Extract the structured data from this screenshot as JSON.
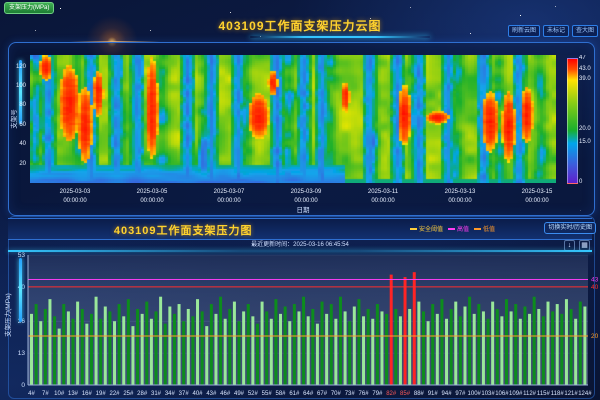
{
  "page": {
    "unit_button": "支架压力(MPa)"
  },
  "cloud_section": {
    "title": "403109工作面支架压力云图",
    "buttons": [
      "刷新云图",
      "未标记",
      "查大图"
    ]
  },
  "pressure_section": {
    "title": "403109工作面支架压力图",
    "update_time": "最近更新时间：2025-03-16 06:45:54",
    "legend": [
      {
        "label": "安全阈值",
        "color": "#ffcf3d"
      },
      {
        "label": "高值",
        "color": "#ff3df0"
      },
      {
        "label": "低值",
        "color": "#ff9a2a"
      }
    ],
    "toggle_button": "切换实时/历史图",
    "toolbox_icons": [
      "save-image-icon",
      "data-view-icon"
    ]
  },
  "chart_data": [
    {
      "id": "support-pressure-cloud",
      "type": "heatmap",
      "xlabel": "日期",
      "ylabel": "支架号",
      "x_ticks": [
        "2025-03-03",
        "2025-03-05",
        "2025-03-07",
        "2025-03-09",
        "2025-03-11",
        "2025-03-13",
        "2025-03-15"
      ],
      "x_tick_time": "00:00:00",
      "y_ticks": [
        20,
        40,
        60,
        80,
        100,
        120
      ],
      "y_range": [
        0,
        132
      ],
      "value_range": [
        0,
        47
      ],
      "colorbar_ticks": [
        {
          "label": "47",
          "value": 47
        },
        {
          "label": "43.0",
          "value": 43
        },
        {
          "label": "39.0",
          "value": 39
        },
        {
          "label": "20.0",
          "value": 20
        },
        {
          "label": "15.0",
          "value": 15
        },
        {
          "label": "0",
          "value": 0
        }
      ],
      "colormap_bands": [
        {
          "from": 43,
          "to": 47,
          "color": "red"
        },
        {
          "from": 39,
          "to": 43,
          "color": "yellow-orange"
        },
        {
          "from": 20,
          "to": 39,
          "color": "green"
        },
        {
          "from": 15,
          "to": 20,
          "color": "cyan"
        },
        {
          "from": 0,
          "to": 15,
          "color": "blue-purple"
        }
      ],
      "band_width": 0.014,
      "low_pressure_bands_x": [
        0.035,
        0.115,
        0.165,
        0.205,
        0.3,
        0.345,
        0.395,
        0.47,
        0.52,
        0.555,
        0.645,
        0.7,
        0.74,
        0.795,
        0.862,
        0.93
      ],
      "low_band_bottom": {
        "y_from": 0.86,
        "x_to": 0.6
      },
      "high_pressure_zones": [
        {
          "x": 0.03,
          "y": 0.1,
          "rx": 0.012,
          "ry": 0.1
        },
        {
          "x": 0.075,
          "y": 0.38,
          "rx": 0.02,
          "ry": 0.3
        },
        {
          "x": 0.105,
          "y": 0.55,
          "rx": 0.014,
          "ry": 0.3
        },
        {
          "x": 0.13,
          "y": 0.3,
          "rx": 0.01,
          "ry": 0.18
        },
        {
          "x": 0.232,
          "y": 0.42,
          "rx": 0.012,
          "ry": 0.4
        },
        {
          "x": 0.435,
          "y": 0.48,
          "rx": 0.02,
          "ry": 0.18
        },
        {
          "x": 0.462,
          "y": 0.22,
          "rx": 0.009,
          "ry": 0.1
        },
        {
          "x": 0.6,
          "y": 0.33,
          "rx": 0.008,
          "ry": 0.12
        },
        {
          "x": 0.712,
          "y": 0.47,
          "rx": 0.013,
          "ry": 0.24
        },
        {
          "x": 0.775,
          "y": 0.49,
          "rx": 0.022,
          "ry": 0.05
        },
        {
          "x": 0.875,
          "y": 0.52,
          "rx": 0.016,
          "ry": 0.24
        },
        {
          "x": 0.91,
          "y": 0.56,
          "rx": 0.013,
          "ry": 0.28
        },
        {
          "x": 0.945,
          "y": 0.47,
          "rx": 0.012,
          "ry": 0.22
        }
      ]
    },
    {
      "id": "support-pressure-bars",
      "type": "bar",
      "ylabel": "支架压力(MPa)",
      "y_ticks": [
        0,
        13,
        26,
        40,
        53
      ],
      "ylim": [
        0,
        53
      ],
      "tick_labels": [
        "4#",
        "7#",
        "10#",
        "13#",
        "16#",
        "19#",
        "22#",
        "25#",
        "28#",
        "31#",
        "34#",
        "37#",
        "40#",
        "43#",
        "46#",
        "49#",
        "52#",
        "55#",
        "58#",
        "61#",
        "64#",
        "67#",
        "70#",
        "73#",
        "76#",
        "79#",
        "82#",
        "85#",
        "88#",
        "91#",
        "94#",
        "97#",
        "100#",
        "103#",
        "106#",
        "109#",
        "112#",
        "115#",
        "118#",
        "121#",
        "124#"
      ],
      "support_start": 4,
      "values": [
        29,
        33,
        26,
        31,
        35,
        28,
        23,
        33,
        30,
        27,
        34,
        31,
        25,
        29,
        36,
        27,
        32,
        30,
        26,
        33,
        28,
        35,
        24,
        31,
        29,
        34,
        27,
        30,
        36,
        25,
        32,
        29,
        33,
        26,
        31,
        28,
        35,
        30,
        24,
        33,
        29,
        36,
        27,
        31,
        34,
        26,
        30,
        33,
        28,
        25,
        34,
        30,
        27,
        35,
        29,
        32,
        26,
        33,
        30,
        36,
        28,
        31,
        25,
        34,
        29,
        33,
        27,
        36,
        30,
        26,
        32,
        35,
        28,
        31,
        27,
        33,
        30,
        29,
        45,
        31,
        28,
        44,
        31,
        46,
        34,
        30,
        26,
        33,
        29,
        35,
        27,
        31,
        34,
        28,
        32,
        36,
        29,
        33,
        30,
        27,
        34,
        31,
        28,
        35,
        30,
        33,
        27,
        32,
        29,
        36,
        31,
        28,
        34,
        30,
        33,
        29,
        35,
        31,
        27,
        34,
        32
      ],
      "thresholds": [
        {
          "label": "43",
          "value": 43,
          "color": "#f23df0"
        },
        {
          "label": "40",
          "value": 40,
          "color": "#ff2d2d"
        },
        {
          "label": "20",
          "value": 20,
          "color": "#ffa02a"
        }
      ],
      "alarm_threshold": 40,
      "alarm_color": "#ff2424",
      "bar_colors": [
        "#9ae89a",
        "#0d8c1d"
      ]
    }
  ]
}
